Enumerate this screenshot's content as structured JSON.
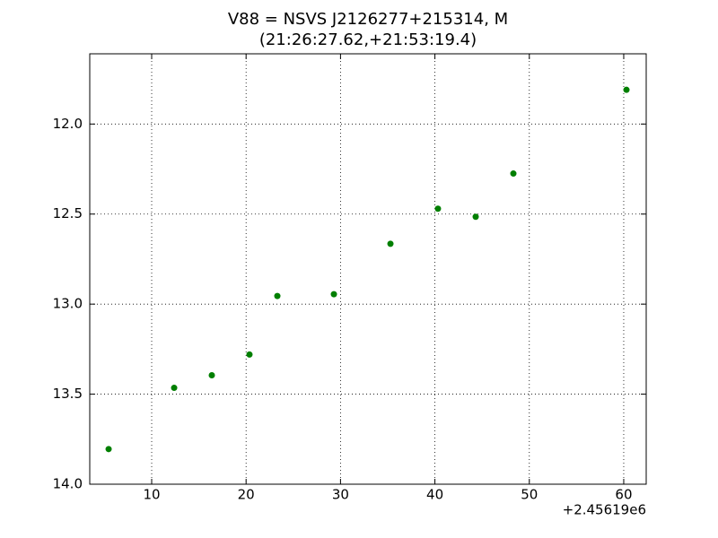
{
  "chart_data": {
    "type": "scatter",
    "title_lines": [
      "V88 = NSVS J2126277+215314, M",
      "(21:26:27.62,+21:53:19.4)"
    ],
    "x_offset_label": "+2.45619e6",
    "series": [
      {
        "color": "#007f00",
        "x": [
          5.44,
          12.38,
          16.37,
          20.36,
          23.31,
          29.3,
          35.29,
          40.32,
          44.32,
          48.31,
          60.29
        ],
        "values": [
          13.805,
          13.465,
          13.395,
          13.28,
          12.955,
          12.945,
          12.665,
          12.47,
          12.515,
          12.275,
          11.81
        ]
      }
    ],
    "xlim": [
      3.44,
      62.38
    ],
    "xticks": [
      10,
      20,
      30,
      40,
      50,
      60
    ],
    "ylim": [
      11.61,
      14.0
    ],
    "y_inverted": true,
    "yticks": [
      {
        "value": 12.0,
        "label": "12.0"
      },
      {
        "value": 12.5,
        "label": "12.5"
      },
      {
        "value": 13.0,
        "label": "13.0"
      },
      {
        "value": 13.5,
        "label": "13.5"
      },
      {
        "value": 14.0,
        "label": "14.0"
      }
    ],
    "grid": true
  }
}
